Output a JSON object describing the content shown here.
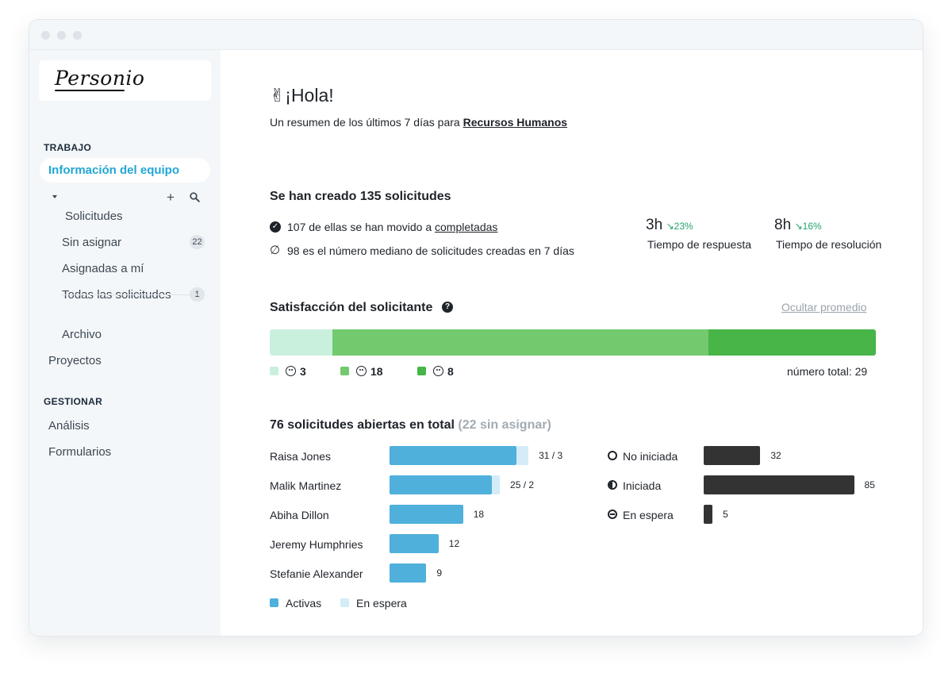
{
  "sidebar": {
    "logo": "Personio",
    "section_work": "TRABAJO",
    "team_info": "Información del equipo",
    "requests": "Solicitudes",
    "unassigned": "Sin asignar",
    "unassigned_count": "22",
    "assigned_to_me": "Asignadas a mí",
    "all_requests": "Todas las solicitudes",
    "all_count": "1",
    "archive": "Archivo",
    "projects": "Proyectos",
    "section_manage": "GESTIONAR",
    "analysis": "Análisis",
    "forms": "Formularios"
  },
  "main": {
    "greeting": "¡Hola!",
    "summary_prefix": "Un resumen de los últimos 7 días para ",
    "summary_team": "Recursos Humanos",
    "created_title": "Se han creado 135 solicitudes",
    "moved_prefix": "107 de ellas se han movido a ",
    "moved_link": "completadas",
    "median_text": "98 es el número mediano de solicitudes creadas en 7 días",
    "response_value": "3h",
    "response_delta": "↘23%",
    "response_label": "Tiempo de respuesta",
    "resolution_value": "8h",
    "resolution_delta": "↘16%",
    "resolution_label": "Tiempo de resolución"
  },
  "satisfaction": {
    "title": "Satisfacción del solicitante",
    "hide_avg": "Ocultar promedio",
    "total_label": "número total: 29",
    "segments": [
      {
        "count": "3",
        "value": 3,
        "color": "#c9f0dd"
      },
      {
        "count": "18",
        "value": 18,
        "color": "#72c96e"
      },
      {
        "count": "8",
        "value": 8,
        "color": "#47b548"
      }
    ]
  },
  "open": {
    "title": "76 solicitudes abiertas en total",
    "title_muted": "(22 sin asignar)",
    "people": [
      {
        "name": "Raisa Jones",
        "label": "31 / 3",
        "active": 31,
        "waiting": 3
      },
      {
        "name": "Malik Martinez",
        "label": "25 / 2",
        "active": 25,
        "waiting": 2
      },
      {
        "name": "Abiha Dillon",
        "label": "18",
        "active": 18,
        "waiting": 0
      },
      {
        "name": "Jeremy Humphries",
        "label": "12",
        "active": 12,
        "waiting": 0
      },
      {
        "name": "Stefanie Alexander",
        "label": "9",
        "active": 9,
        "waiting": 0
      }
    ],
    "legend_active": "Activas",
    "legend_waiting": "En espera",
    "status": [
      {
        "name": "No iniciada",
        "value": 32,
        "label": "32"
      },
      {
        "name": "Iniciada",
        "value": 85,
        "label": "85"
      },
      {
        "name": "En espera",
        "value": 5,
        "label": "5"
      }
    ],
    "colors": {
      "active": "#4fb0db",
      "waiting": "#d3ecf7",
      "status": "#333333"
    }
  }
}
